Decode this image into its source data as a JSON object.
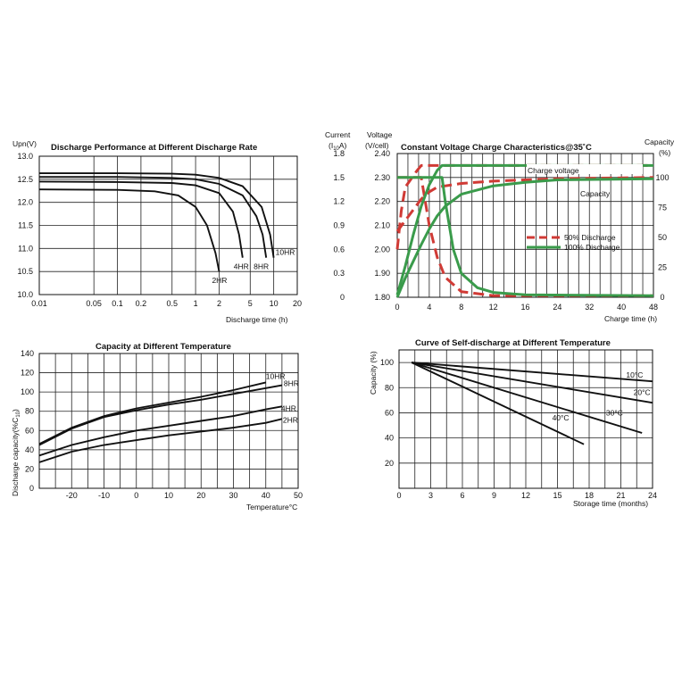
{
  "chart_data": [
    {
      "type": "line",
      "title": "Discharge Performance at Different Discharge Rate",
      "ylabel": "Upn(V)",
      "xlabel": "Discharge  time (h)",
      "xscale": "log",
      "xlim": [
        0.01,
        20
      ],
      "ylim": [
        10.0,
        13.0
      ],
      "xticks": [
        "0.01",
        "0.05",
        "0.1",
        "0.2",
        "0.5",
        "1",
        "2",
        "5",
        "10",
        "20"
      ],
      "yticks": [
        "10.0",
        "10.5",
        "11.0",
        "11.5",
        "12.0",
        "12.5",
        "13.0"
      ],
      "grid": true,
      "series": [
        {
          "name": "2HR",
          "x": [
            0.01,
            0.1,
            0.3,
            0.6,
            1.0,
            1.4,
            1.8,
            2.0
          ],
          "y": [
            12.28,
            12.27,
            12.24,
            12.15,
            11.9,
            11.5,
            10.9,
            10.5
          ]
        },
        {
          "name": "4HR",
          "x": [
            0.01,
            0.1,
            0.5,
            1.0,
            2.0,
            3.0,
            3.6,
            4.0
          ],
          "y": [
            12.45,
            12.44,
            12.42,
            12.37,
            12.2,
            11.8,
            11.3,
            10.8
          ]
        },
        {
          "name": "8HR",
          "x": [
            0.01,
            0.1,
            0.5,
            1.0,
            2.0,
            4.0,
            6.0,
            7.2,
            8.0
          ],
          "y": [
            12.55,
            12.55,
            12.53,
            12.5,
            12.4,
            12.15,
            11.7,
            11.3,
            10.8
          ]
        },
        {
          "name": "10HR",
          "x": [
            0.01,
            0.1,
            0.5,
            1.0,
            2.0,
            4.0,
            7.0,
            9.0,
            10.0
          ],
          "y": [
            12.63,
            12.63,
            12.62,
            12.6,
            12.53,
            12.35,
            11.9,
            11.3,
            10.8
          ]
        }
      ]
    },
    {
      "type": "line",
      "title": "Constant Voltage Charge Characteristics@35˚C",
      "axes_labels": {
        "current": [
          "Current",
          "(I",
          "10",
          "A)"
        ],
        "voltage": [
          "Voltage",
          "(V/cell)"
        ],
        "capacity": [
          "Capacity",
          "(%)"
        ]
      },
      "xlabel": "Charge time (h)",
      "xticks": [
        "0",
        "4",
        "8",
        "12",
        "16",
        "24",
        "32",
        "40",
        "48"
      ],
      "xlim": [
        0,
        48
      ],
      "current_ticks": [
        "0",
        "0.3",
        "0.6",
        "0.9",
        "1.2",
        "1.5",
        "1.8"
      ],
      "voltage_ticks": [
        "1.80",
        "1.90",
        "2.00",
        "2.10",
        "2.20",
        "2.30",
        "2.40"
      ],
      "capacity_ticks": [
        "0",
        "25",
        "50",
        "75",
        "100"
      ],
      "ylim_voltage": [
        1.8,
        2.4
      ],
      "annotations": [
        "Charge voltage",
        "Capacity"
      ],
      "grid": true,
      "series": [
        {
          "name": "50% Discharge",
          "style": "dashed",
          "color": "#d03a35",
          "role": "charge voltage",
          "x": [
            0,
            0.5,
            1.0,
            2.5,
            3.0,
            48
          ],
          "y": [
            2.0,
            2.16,
            2.26,
            2.33,
            2.35,
            2.35
          ]
        },
        {
          "name": "50% Discharge",
          "style": "dashed",
          "color": "#d03a35",
          "role": "current",
          "x": [
            0,
            0.5,
            1,
            2,
            3.0,
            4.0,
            5.0,
            6.0,
            8.0,
            12.0,
            48
          ],
          "y": [
            1.5,
            1.5,
            1.5,
            1.5,
            1.5,
            0.9,
            0.5,
            0.25,
            0.07,
            0.02,
            0.02
          ]
        },
        {
          "name": "50% Discharge",
          "style": "dashed",
          "color": "#d03a35",
          "role": "capacity",
          "x": [
            0,
            1.0,
            2.0,
            3.0,
            4.0,
            5.0,
            8.0,
            12.0,
            16.0,
            24.0,
            48
          ],
          "y": [
            55,
            64,
            73,
            82,
            88,
            92,
            95,
            97,
            98,
            99,
            100
          ]
        },
        {
          "name": "100% Discharge",
          "style": "solid",
          "color": "#3a9b4b",
          "role": "charge voltage",
          "x": [
            0,
            1.0,
            2.0,
            3.0,
            4.0,
            5.0,
            5.6,
            48
          ],
          "y": [
            1.81,
            1.93,
            2.06,
            2.18,
            2.27,
            2.33,
            2.35,
            2.35
          ]
        },
        {
          "name": "100% Discharge",
          "style": "solid",
          "color": "#3a9b4b",
          "role": "current",
          "x": [
            0,
            5.6,
            6.0,
            7.0,
            8.0,
            10.0,
            12.0,
            16.0,
            48
          ],
          "y": [
            1.5,
            1.5,
            1.2,
            0.6,
            0.3,
            0.12,
            0.06,
            0.03,
            0.02
          ]
        },
        {
          "name": "100% Discharge",
          "style": "solid",
          "color": "#3a9b4b",
          "role": "capacity",
          "x": [
            0,
            1.0,
            2.0,
            3.0,
            4.0,
            5.0,
            6.0,
            8.0,
            12.0,
            16.0,
            24.0,
            48
          ],
          "y": [
            0,
            16,
            30,
            44,
            57,
            68,
            76,
            86,
            93,
            96,
            98,
            99
          ]
        }
      ]
    },
    {
      "type": "line",
      "title": "Capacity at Different Temperature",
      "ylabel": [
        "Discharge capacity(%C",
        "10",
        ")"
      ],
      "xlabel": "Temperature°C",
      "xlim": [
        -30,
        50
      ],
      "ylim": [
        0,
        140
      ],
      "xticks": [
        "-20",
        "-10",
        "0",
        "10",
        "20",
        "30",
        "40",
        "50"
      ],
      "yticks": [
        "0",
        "20",
        "40",
        "60",
        "80",
        "100",
        "120",
        "140"
      ],
      "grid": true,
      "series": [
        {
          "name": "10HR",
          "x": [
            -30,
            -20,
            -10,
            0,
            10,
            20,
            30,
            40
          ],
          "y": [
            46,
            63,
            75,
            83,
            89,
            95,
            102,
            110
          ]
        },
        {
          "name": "8HR",
          "x": [
            -30,
            -20,
            -10,
            0,
            10,
            20,
            30,
            40,
            45
          ],
          "y": [
            45,
            62,
            74,
            81,
            87,
            92,
            98,
            104,
            107
          ]
        },
        {
          "name": "4HR",
          "x": [
            -30,
            -20,
            -10,
            0,
            10,
            20,
            30,
            40,
            45
          ],
          "y": [
            34,
            45,
            53,
            60,
            65,
            70,
            75,
            82,
            85
          ]
        },
        {
          "name": "2HR",
          "x": [
            -30,
            -20,
            -10,
            0,
            10,
            20,
            30,
            40,
            45
          ],
          "y": [
            27,
            38,
            45,
            50,
            55,
            59,
            63,
            68,
            72
          ]
        }
      ]
    },
    {
      "type": "line",
      "title": "Curve of Self-discharge at Different Temperature",
      "ylabel": "Capacity (%)",
      "xlabel": "Storage time (months)",
      "xlim": [
        0,
        24
      ],
      "ylim": [
        0,
        100
      ],
      "xticks": [
        "0",
        "3",
        "6",
        "9",
        "12",
        "15",
        "18",
        "21",
        "24"
      ],
      "yticks": [
        "20",
        "40",
        "60",
        "80",
        "100"
      ],
      "grid": true,
      "series": [
        {
          "name": "10°C",
          "x": [
            1.2,
            24
          ],
          "y": [
            100,
            85
          ]
        },
        {
          "name": "20°C",
          "x": [
            1.2,
            24
          ],
          "y": [
            100,
            68
          ]
        },
        {
          "name": "30°C",
          "x": [
            1.2,
            23
          ],
          "y": [
            100,
            44
          ]
        },
        {
          "name": "40°C",
          "x": [
            1.2,
            17.5
          ],
          "y": [
            100,
            35
          ]
        }
      ]
    }
  ]
}
